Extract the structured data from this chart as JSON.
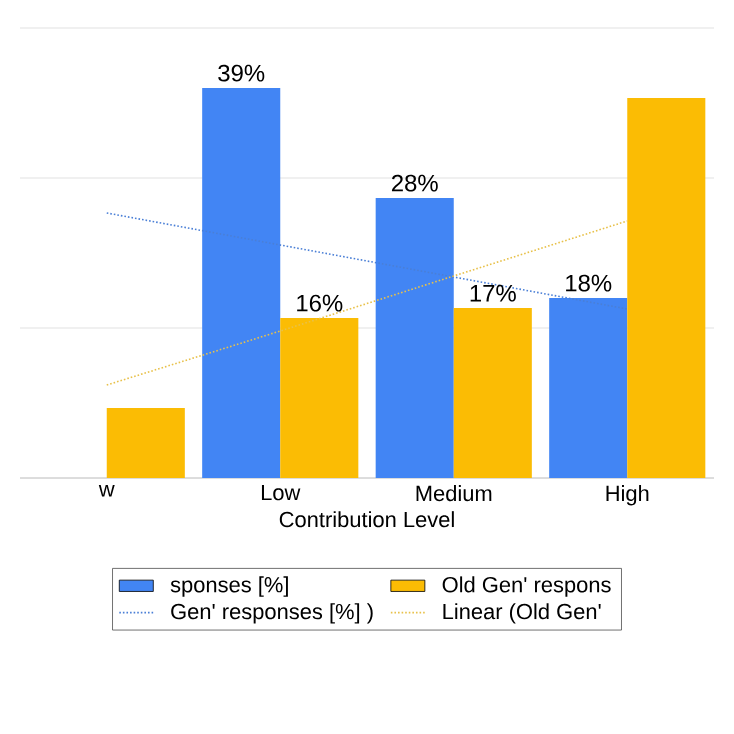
{
  "chart_data": {
    "type": "bar",
    "xlabel": "Contribution Level",
    "categories": [
      "w",
      "Low",
      "Medium",
      "High"
    ],
    "series": [
      {
        "name": "sponses [%]",
        "color": "#4285f4",
        "values": [
          null,
          39,
          28,
          18
        ],
        "value_labels": [
          null,
          "39%",
          "28%",
          "18%"
        ]
      },
      {
        "name": "Old Gen' respons",
        "color": "#fbbc04",
        "values": [
          7,
          16,
          17,
          38
        ],
        "value_labels": [
          null,
          "16%",
          "17%",
          null
        ]
      },
      {
        "type": "line",
        "name": "Gen' responses [%] )",
        "color": "#4a7fd6",
        "line_style": "dotted",
        "values": [
          26.5,
          23.3,
          20.1,
          16.9
        ]
      },
      {
        "type": "line",
        "name": "Linear (Old Gen'",
        "color": "#e8c14a",
        "line_style": "dotted",
        "values": [
          9.3,
          14.7,
          20.2,
          25.7
        ]
      }
    ],
    "ylim": [
      0,
      45
    ],
    "yticks": [
      {
        "value": 0,
        "label": null
      },
      {
        "value": 15,
        "label": null
      },
      {
        "value": 30,
        "label": null
      },
      {
        "value": 45,
        "label": null
      }
    ],
    "grid": "y",
    "legend": "bottom",
    "tick_labels": "x",
    "marker": "none"
  }
}
